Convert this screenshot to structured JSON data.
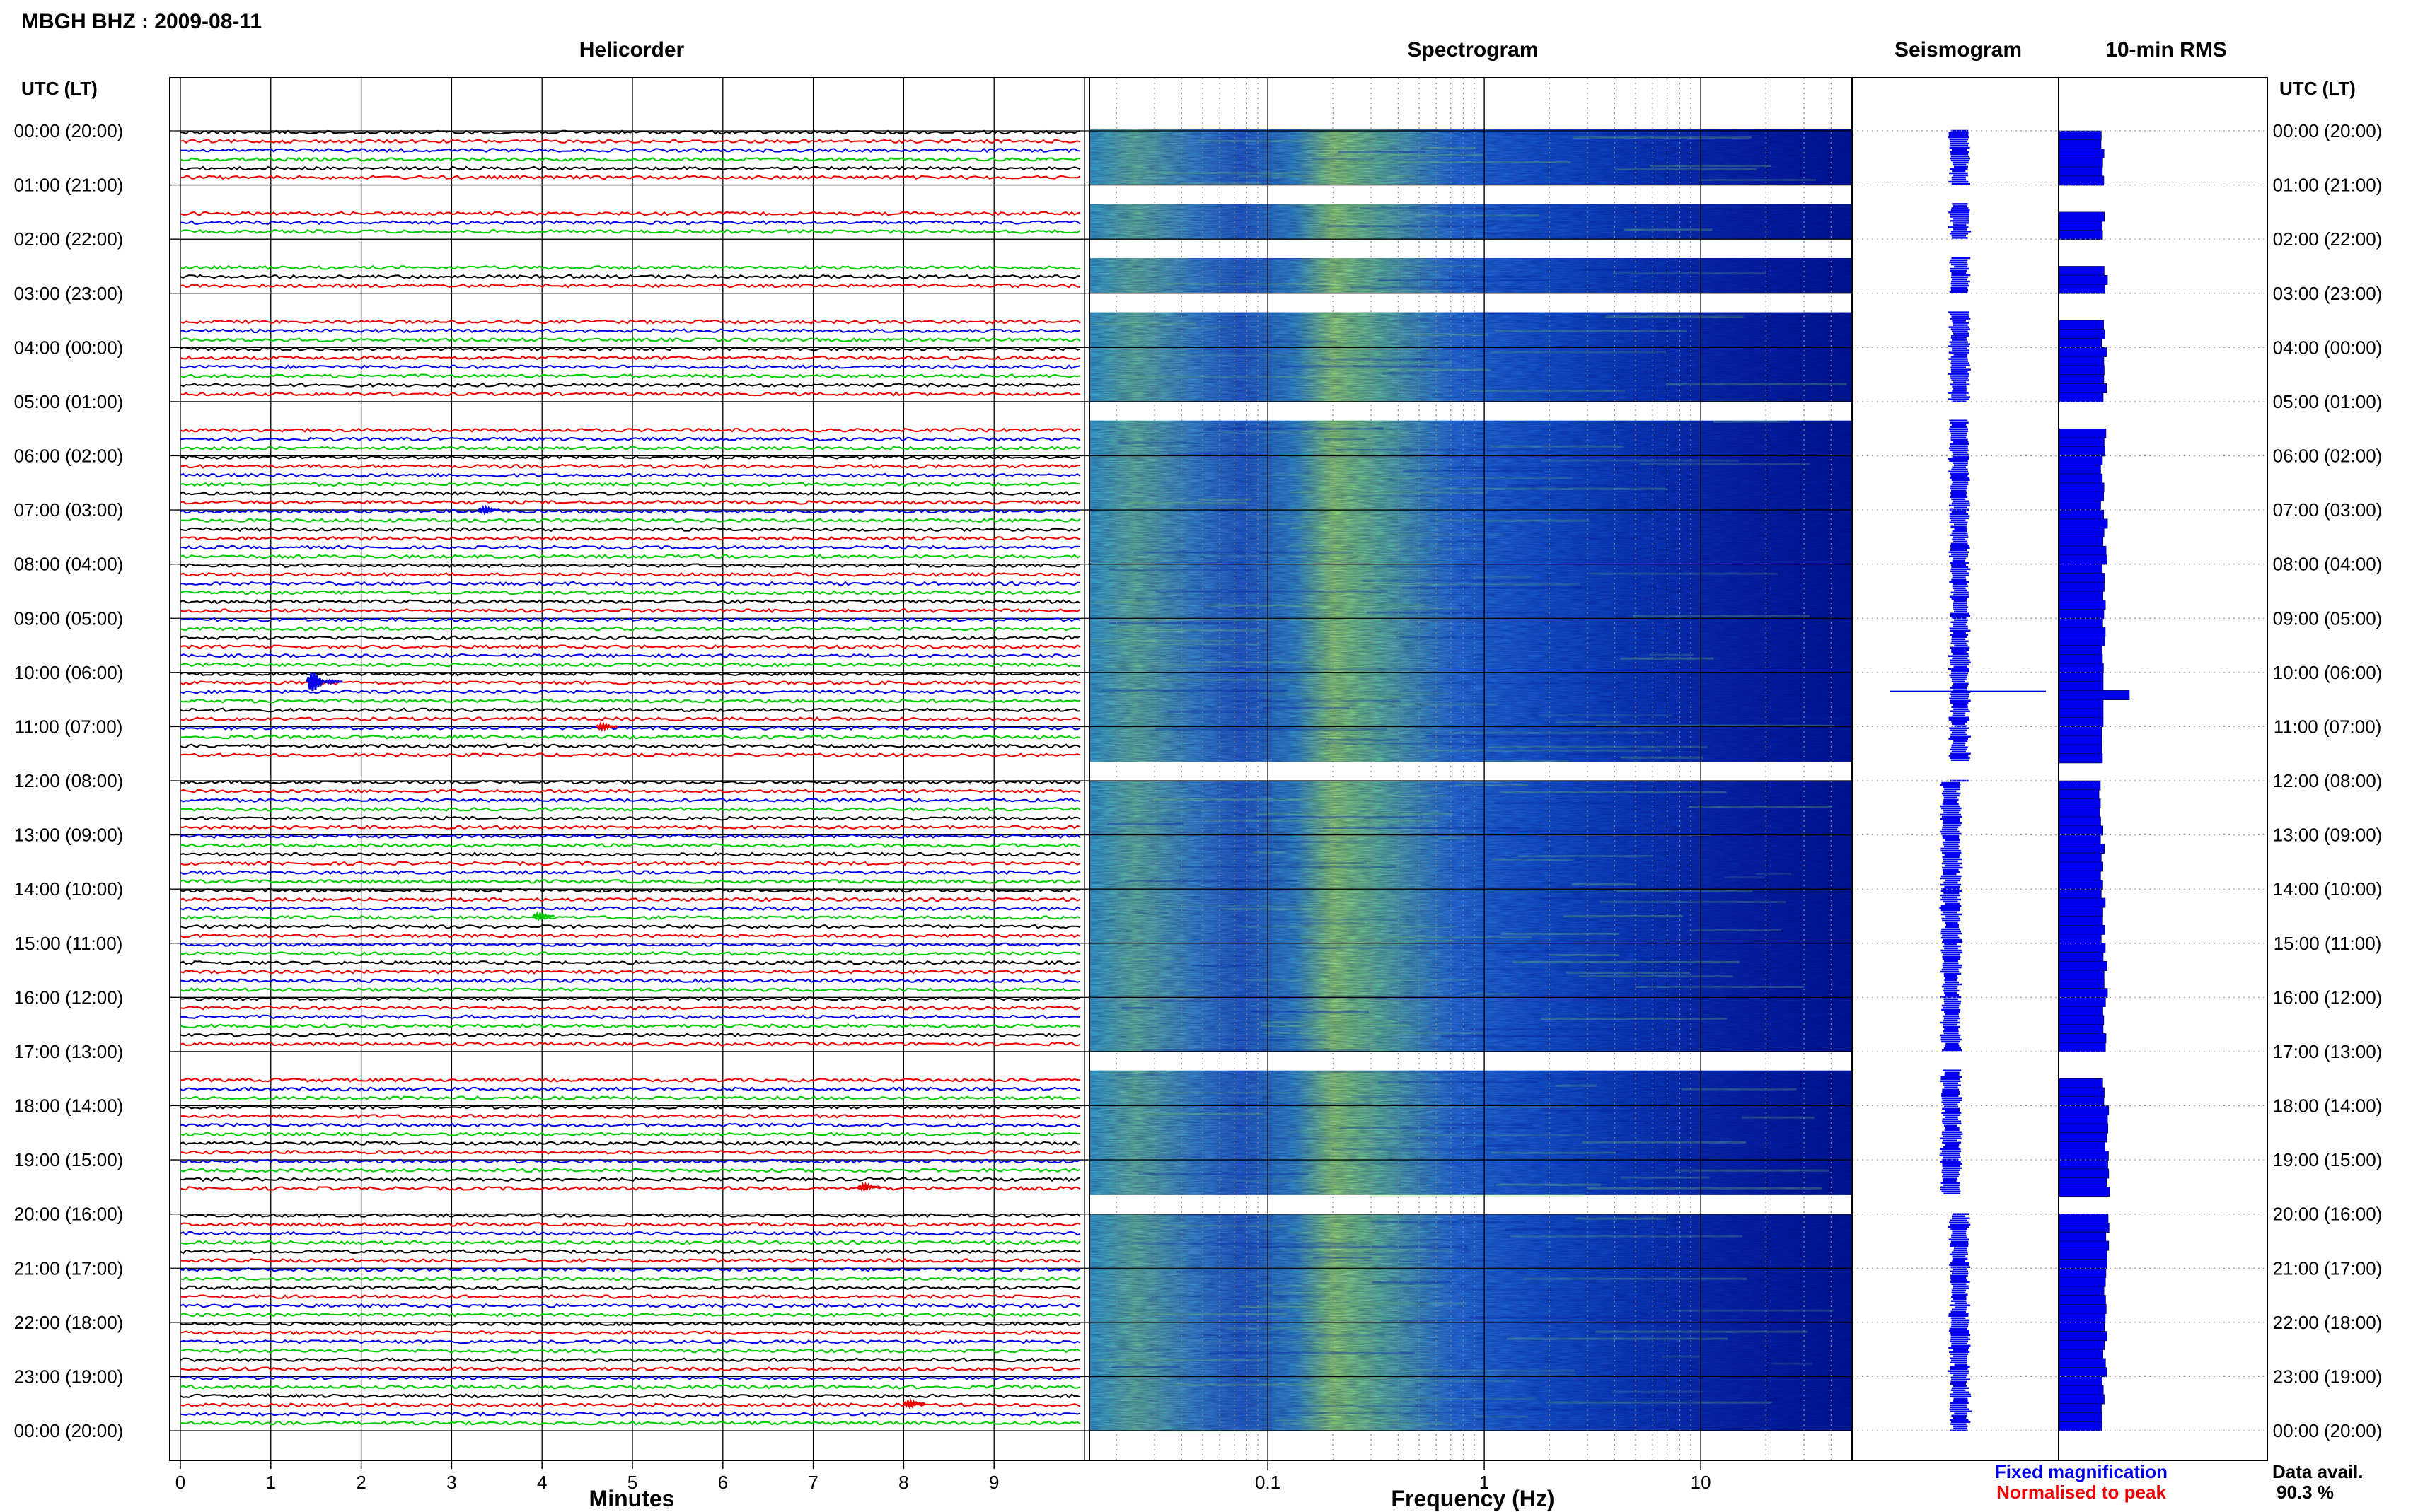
{
  "header": {
    "title": "MBGH BHZ : 2009-08-11",
    "panels": [
      "Helicorder",
      "Spectrogram",
      "Seismogram",
      "10-min RMS"
    ],
    "utc_label_left": "UTC (LT)",
    "utc_label_right": "UTC (LT)"
  },
  "footer": {
    "minutes_label": "Minutes",
    "frequency_label": "Frequency (Hz)",
    "legend_fixed": "Fixed magnification",
    "legend_normalised": "Normalised to peak",
    "data_avail_label": "Data avail.",
    "data_avail_value": "90.3 %"
  },
  "colors": {
    "trace_cycle": [
      "#000000",
      "#ee0000",
      "#0000ee",
      "#00cc00"
    ],
    "legend_fixed": "#0000ee",
    "legend_normalised": "#ee0000",
    "spectrogram_low": "#0010a0",
    "spectrogram_mid": "#1a7ae8",
    "spectrogram_high": "#a8f060",
    "rms_bar": "#0000ee"
  },
  "chart_data": {
    "type": "heatmap",
    "title": "MBGH BHZ : 2009-08-11",
    "time_labels": [
      "00:00 (20:00)",
      "01:00 (21:00)",
      "02:00 (22:00)",
      "03:00 (23:00)",
      "04:00 (00:00)",
      "05:00 (01:00)",
      "06:00 (02:00)",
      "07:00 (03:00)",
      "08:00 (04:00)",
      "09:00 (05:00)",
      "10:00 (06:00)",
      "11:00 (07:00)",
      "12:00 (08:00)",
      "13:00 (09:00)",
      "14:00 (10:00)",
      "15:00 (11:00)",
      "16:00 (12:00)",
      "17:00 (13:00)",
      "18:00 (14:00)",
      "19:00 (15:00)",
      "20:00 (16:00)",
      "21:00 (17:00)",
      "22:00 (18:00)",
      "23:00 (19:00)",
      "00:00 (20:00)"
    ],
    "helicorder": {
      "xlabel": "Minutes",
      "xlim": [
        0,
        10
      ],
      "x_ticks": [
        "0",
        "1",
        "2",
        "3",
        "4",
        "5",
        "6",
        "7",
        "8",
        "9"
      ],
      "traces_per_hour": 6,
      "gaps_hours": [
        [
          1.0,
          1.35
        ],
        [
          2.0,
          2.35
        ],
        [
          3.0,
          3.35
        ],
        [
          5.0,
          5.35
        ],
        [
          11.65,
          12.0
        ],
        [
          17.0,
          17.35
        ],
        [
          19.65,
          20.0
        ]
      ],
      "events": [
        {
          "hour": 10.17,
          "minute": 1.4,
          "color": "blue",
          "amplitude": "large"
        },
        {
          "hour": 11.0,
          "minute": 4.6,
          "color": "red",
          "amplitude": "small"
        },
        {
          "hour": 7.0,
          "minute": 3.3,
          "color": "blue",
          "amplitude": "small"
        },
        {
          "hour": 14.5,
          "minute": 3.9,
          "color": "green",
          "amplitude": "small"
        },
        {
          "hour": 19.5,
          "minute": 7.5,
          "color": "red",
          "amplitude": "small"
        },
        {
          "hour": 23.5,
          "minute": 8.0,
          "color": "red",
          "amplitude": "small"
        }
      ]
    },
    "spectrogram": {
      "xlabel": "Frequency (Hz)",
      "x_scale": "log",
      "xlim": [
        0.015,
        50
      ],
      "x_ticks": [
        "0.1",
        "1",
        "10"
      ]
    },
    "rms": {
      "unit": "relative",
      "values": [
        0.62,
        0.64,
        0.66,
        0.63,
        0.65,
        0.64,
        0.62,
        0.66,
        0.64,
        0.63,
        1.35,
        0.63,
        0.6,
        0.62,
        0.63,
        0.66,
        0.64,
        0.64,
        0.68,
        0.7,
        0.7,
        0.66,
        0.65,
        0.63
      ]
    },
    "data_availability_percent": 90.3
  }
}
